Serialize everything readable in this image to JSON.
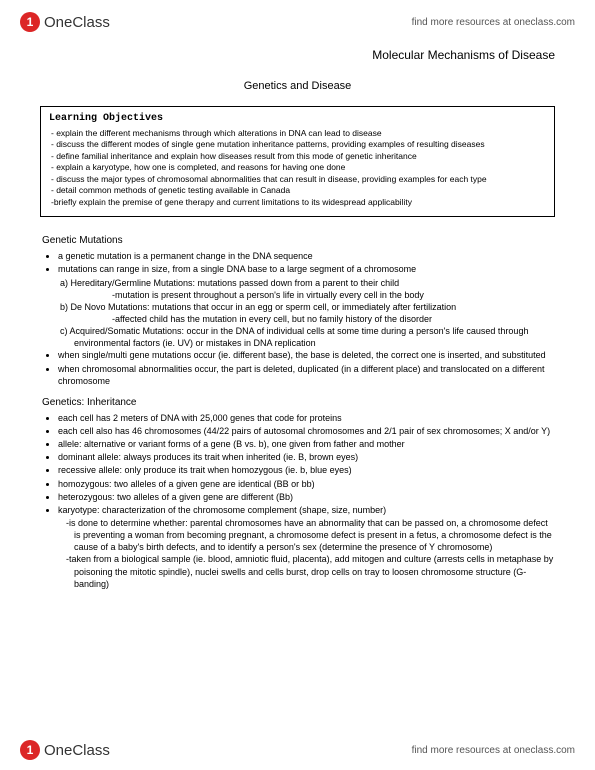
{
  "header": {
    "logo_text": "OneClass",
    "link_text": "find more resources at oneclass.com"
  },
  "titles": {
    "main": "Molecular Mechanisms of Disease",
    "sub": "Genetics and Disease"
  },
  "objectives": {
    "title": "Learning Objectives",
    "items": [
      "- explain the different mechanisms through which alterations in DNA can lead to disease",
      "- discuss the different modes of single gene mutation inheritance patterns, providing examples of resulting diseases",
      "- define familial inheritance and explain how diseases result from this mode of genetic inheritance",
      "- explain a karyotype, how one is completed, and reasons for having one done",
      "- discuss the major types of chromosomal abnormalities that can result in disease, providing examples for each type",
      "- detail common methods of genetic testing available in Canada",
      "-briefly explain the premise of gene therapy and current limitations to its widespread applicability"
    ]
  },
  "sections": {
    "mutations": {
      "heading": "Genetic Mutations",
      "b1": "a genetic mutation is a permanent change in the DNA sequence",
      "b2": "mutations can range in size, from a single DNA base to a large segment of a chromosome",
      "a_label": "a)  Hereditary/Germline Mutations: mutations passed down from a parent to their child",
      "a_sub": "-mutation is present throughout a person's life in virtually every cell in the body",
      "b_label": "b)  De Novo Mutations: mutations that occur in an egg or sperm cell, or immediately after fertilization",
      "b_sub": "-affected child has the mutation in every cell, but no family history of the disorder",
      "c_label": "c)  Acquired/Somatic Mutations: occur in the DNA of individual cells at some time during a person's life caused through environmental factors (ie. UV) or mistakes in DNA replication",
      "b3": "when single/multi gene mutations occur (ie. different base), the base is deleted, the correct one is inserted, and substituted",
      "b4": "when chromosomal abnormalities occur, the part is deleted, duplicated (in a different place) and translocated on a different chromosome"
    },
    "inheritance": {
      "heading": "Genetics: Inheritance",
      "b1": "each cell has 2 meters of DNA with 25,000 genes that code for proteins",
      "b2": "each cell also has 46 chromosomes (44/22 pairs of autosomal chromosomes and 2/1 pair of sex chromosomes; X and/or Y)",
      "b3": "allele: alternative or variant forms of a gene (B vs. b), one given from father and mother",
      "b4": "dominant allele: always produces its trait when inherited (ie. B, brown eyes)",
      "b5": "recessive allele: only produce its trait when homozygous (ie. b, blue eyes)",
      "b6": "homozygous: two alleles of a given gene are identical (BB or bb)",
      "b7": "heterozygous: two alleles of a given gene are different (Bb)",
      "b8": "karyotype: characterization of the chromosome complement (shape, size, number)",
      "k1": "-is done to determine whether: parental chromosomes have an abnormality that can be passed on, a chromosome defect is preventing a woman from becoming pregnant, a chromosome defect is present in a fetus, a chromosome defect is the cause of a baby's birth defects, and to identify a person's sex (determine the presence of Y chromosome)",
      "k2": "-taken from a biological sample (ie. blood, amniotic fluid, placenta), add mitogen and culture (arrests cells in metaphase by poisoning the mitotic spindle), nuclei swells and cells burst, drop cells on tray to loosen chromosome structure (G-banding)"
    }
  },
  "colors": {
    "logo_bg": "#dc2626",
    "text": "#000000",
    "bg": "#ffffff"
  }
}
